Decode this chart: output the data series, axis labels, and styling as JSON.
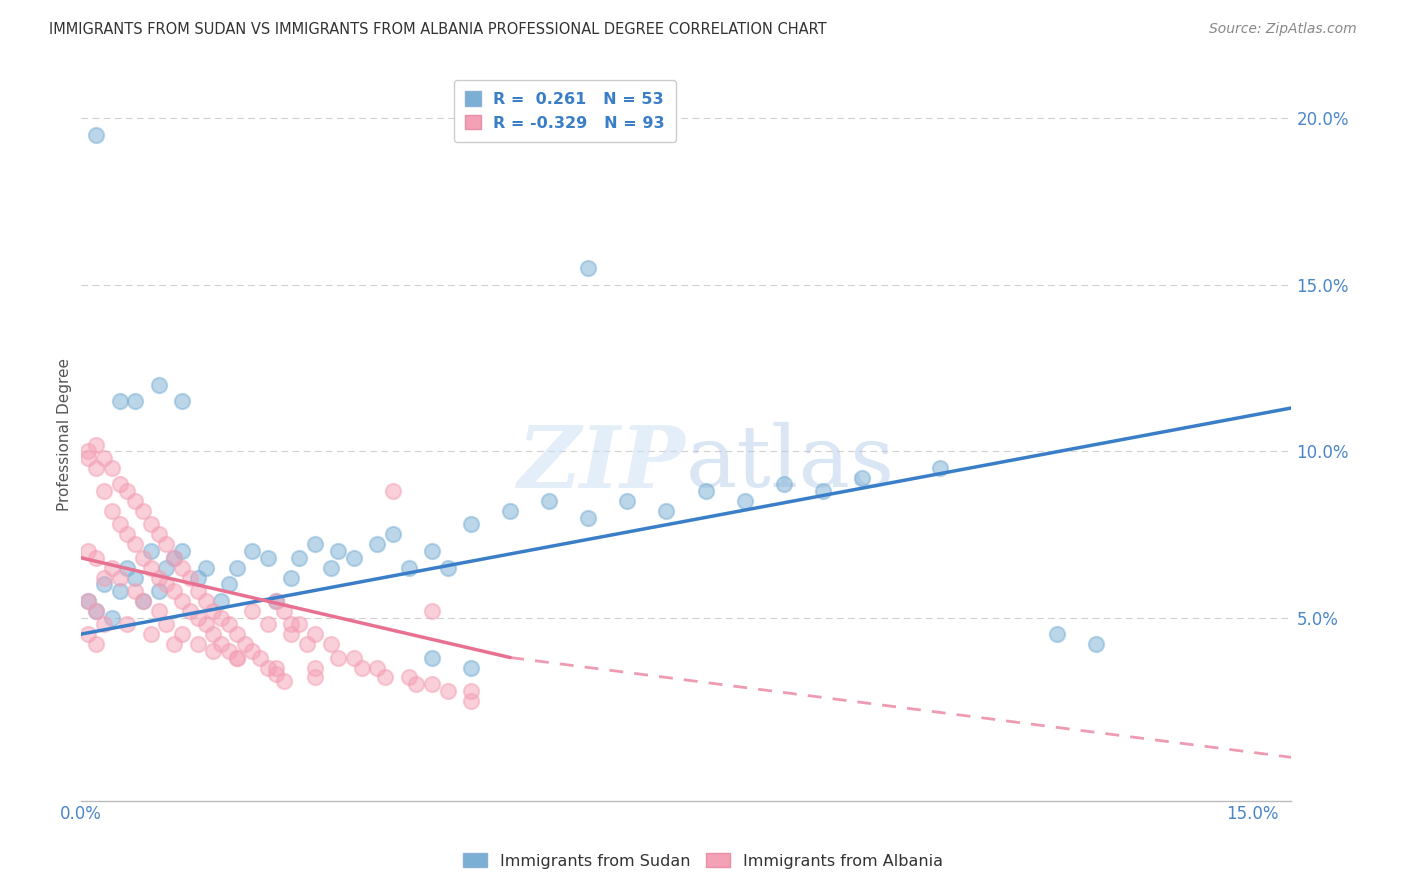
{
  "title": "IMMIGRANTS FROM SUDAN VS IMMIGRANTS FROM ALBANIA PROFESSIONAL DEGREE CORRELATION CHART",
  "source": "Source: ZipAtlas.com",
  "ylabel": "Professional Degree",
  "xlim": [
    0.0,
    0.155
  ],
  "ylim": [
    -0.005,
    0.215
  ],
  "yticks": [
    0.0,
    0.05,
    0.1,
    0.15,
    0.2
  ],
  "ytick_labels": [
    "",
    "5.0%",
    "10.0%",
    "15.0%",
    "20.0%"
  ],
  "xtick_labels": [
    "0.0%",
    "15.0%"
  ],
  "sudan_color": "#7bafd4",
  "albania_color": "#f4a0b5",
  "sudan_label": "Immigrants from Sudan",
  "albania_label": "Immigrants from Albania",
  "legend_line1": "R =  0.261   N = 53",
  "legend_line2": "R = -0.329   N = 93",
  "sudan_reg": [
    0.0,
    0.155,
    0.045,
    0.113
  ],
  "albania_reg_solid": [
    0.0,
    0.055,
    0.068,
    0.038
  ],
  "albania_reg_dashed": [
    0.055,
    0.155,
    0.038,
    0.008
  ],
  "sudan_points": [
    [
      0.001,
      0.055
    ],
    [
      0.002,
      0.052
    ],
    [
      0.003,
      0.06
    ],
    [
      0.004,
      0.05
    ],
    [
      0.005,
      0.058
    ],
    [
      0.006,
      0.065
    ],
    [
      0.007,
      0.062
    ],
    [
      0.008,
      0.055
    ],
    [
      0.009,
      0.07
    ],
    [
      0.01,
      0.058
    ],
    [
      0.011,
      0.065
    ],
    [
      0.012,
      0.068
    ],
    [
      0.013,
      0.07
    ],
    [
      0.015,
      0.062
    ],
    [
      0.016,
      0.065
    ],
    [
      0.018,
      0.055
    ],
    [
      0.019,
      0.06
    ],
    [
      0.02,
      0.065
    ],
    [
      0.022,
      0.07
    ],
    [
      0.024,
      0.068
    ],
    [
      0.025,
      0.055
    ],
    [
      0.027,
      0.062
    ],
    [
      0.028,
      0.068
    ],
    [
      0.03,
      0.072
    ],
    [
      0.032,
      0.065
    ],
    [
      0.033,
      0.07
    ],
    [
      0.035,
      0.068
    ],
    [
      0.038,
      0.072
    ],
    [
      0.04,
      0.075
    ],
    [
      0.042,
      0.065
    ],
    [
      0.045,
      0.07
    ],
    [
      0.047,
      0.065
    ],
    [
      0.005,
      0.115
    ],
    [
      0.007,
      0.115
    ],
    [
      0.01,
      0.12
    ],
    [
      0.013,
      0.115
    ],
    [
      0.05,
      0.078
    ],
    [
      0.055,
      0.082
    ],
    [
      0.06,
      0.085
    ],
    [
      0.065,
      0.08
    ],
    [
      0.07,
      0.085
    ],
    [
      0.075,
      0.082
    ],
    [
      0.08,
      0.088
    ],
    [
      0.085,
      0.085
    ],
    [
      0.09,
      0.09
    ],
    [
      0.095,
      0.088
    ],
    [
      0.1,
      0.092
    ],
    [
      0.11,
      0.095
    ],
    [
      0.045,
      0.038
    ],
    [
      0.05,
      0.035
    ],
    [
      0.125,
      0.045
    ],
    [
      0.13,
      0.042
    ],
    [
      0.002,
      0.195
    ],
    [
      0.065,
      0.155
    ]
  ],
  "albania_points": [
    [
      0.001,
      0.1
    ],
    [
      0.001,
      0.098
    ],
    [
      0.002,
      0.102
    ],
    [
      0.002,
      0.095
    ],
    [
      0.003,
      0.098
    ],
    [
      0.003,
      0.088
    ],
    [
      0.004,
      0.095
    ],
    [
      0.004,
      0.082
    ],
    [
      0.005,
      0.09
    ],
    [
      0.005,
      0.078
    ],
    [
      0.006,
      0.088
    ],
    [
      0.006,
      0.075
    ],
    [
      0.007,
      0.085
    ],
    [
      0.007,
      0.072
    ],
    [
      0.008,
      0.082
    ],
    [
      0.008,
      0.068
    ],
    [
      0.009,
      0.078
    ],
    [
      0.009,
      0.065
    ],
    [
      0.01,
      0.075
    ],
    [
      0.01,
      0.062
    ],
    [
      0.011,
      0.072
    ],
    [
      0.011,
      0.06
    ],
    [
      0.012,
      0.068
    ],
    [
      0.012,
      0.058
    ],
    [
      0.013,
      0.065
    ],
    [
      0.013,
      0.055
    ],
    [
      0.014,
      0.062
    ],
    [
      0.014,
      0.052
    ],
    [
      0.015,
      0.058
    ],
    [
      0.015,
      0.05
    ],
    [
      0.016,
      0.055
    ],
    [
      0.016,
      0.048
    ],
    [
      0.017,
      0.052
    ],
    [
      0.017,
      0.045
    ],
    [
      0.018,
      0.05
    ],
    [
      0.018,
      0.042
    ],
    [
      0.019,
      0.048
    ],
    [
      0.019,
      0.04
    ],
    [
      0.02,
      0.045
    ],
    [
      0.02,
      0.038
    ],
    [
      0.021,
      0.042
    ],
    [
      0.022,
      0.04
    ],
    [
      0.023,
      0.038
    ],
    [
      0.024,
      0.035
    ],
    [
      0.025,
      0.055
    ],
    [
      0.025,
      0.033
    ],
    [
      0.026,
      0.052
    ],
    [
      0.026,
      0.031
    ],
    [
      0.027,
      0.048
    ],
    [
      0.03,
      0.045
    ],
    [
      0.03,
      0.035
    ],
    [
      0.001,
      0.07
    ],
    [
      0.002,
      0.068
    ],
    [
      0.003,
      0.062
    ],
    [
      0.001,
      0.055
    ],
    [
      0.002,
      0.052
    ],
    [
      0.003,
      0.048
    ],
    [
      0.001,
      0.045
    ],
    [
      0.002,
      0.042
    ],
    [
      0.004,
      0.065
    ],
    [
      0.005,
      0.062
    ],
    [
      0.007,
      0.058
    ],
    [
      0.008,
      0.055
    ],
    [
      0.01,
      0.052
    ],
    [
      0.011,
      0.048
    ],
    [
      0.013,
      0.045
    ],
    [
      0.015,
      0.042
    ],
    [
      0.017,
      0.04
    ],
    [
      0.02,
      0.038
    ],
    [
      0.025,
      0.035
    ],
    [
      0.03,
      0.032
    ],
    [
      0.04,
      0.088
    ],
    [
      0.045,
      0.052
    ],
    [
      0.028,
      0.048
    ],
    [
      0.032,
      0.042
    ],
    [
      0.035,
      0.038
    ],
    [
      0.038,
      0.035
    ],
    [
      0.042,
      0.032
    ],
    [
      0.045,
      0.03
    ],
    [
      0.05,
      0.028
    ],
    [
      0.012,
      0.042
    ],
    [
      0.006,
      0.048
    ],
    [
      0.009,
      0.045
    ],
    [
      0.022,
      0.052
    ],
    [
      0.024,
      0.048
    ],
    [
      0.027,
      0.045
    ],
    [
      0.029,
      0.042
    ],
    [
      0.033,
      0.038
    ],
    [
      0.036,
      0.035
    ],
    [
      0.039,
      0.032
    ],
    [
      0.043,
      0.03
    ],
    [
      0.047,
      0.028
    ],
    [
      0.05,
      0.025
    ]
  ],
  "watermark_zip": "ZIP",
  "watermark_atlas": "atlas",
  "background_color": "#ffffff",
  "grid_color": "#d0d0d0"
}
